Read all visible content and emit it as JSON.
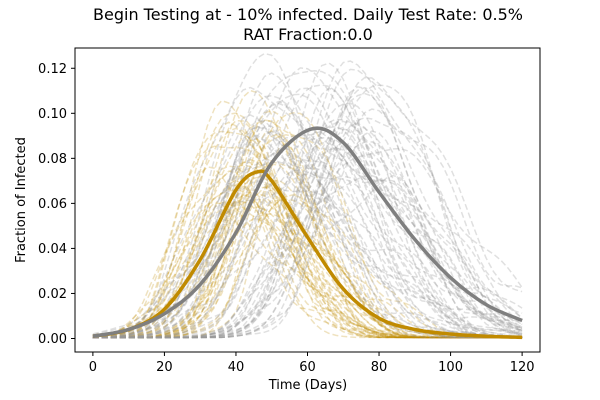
{
  "chart_data": {
    "type": "line",
    "title": [
      "Begin Testing at - 10% infected. Daily Test Rate: 0.5%",
      "RAT Fraction:0.0"
    ],
    "xlabel": "Time (Days)",
    "ylabel": "Fraction of Infected",
    "xlim": [
      -5,
      125
    ],
    "ylim": [
      -0.006,
      0.129
    ],
    "xticks": [
      0,
      20,
      40,
      60,
      80,
      100,
      120
    ],
    "yticks": [
      0.0,
      0.02,
      0.04,
      0.06,
      0.08,
      0.1,
      0.12
    ],
    "ytick_labels": [
      "0.00",
      "0.02",
      "0.04",
      "0.06",
      "0.08",
      "0.10",
      "0.12"
    ],
    "grid": false,
    "series": [
      {
        "role": "mean",
        "color": "#c08a00",
        "x": [
          0,
          10,
          20,
          30,
          40,
          46,
          50,
          60,
          70,
          80,
          90,
          100,
          110,
          120
        ],
        "y": [
          0.001,
          0.004,
          0.013,
          0.035,
          0.066,
          0.074,
          0.07,
          0.045,
          0.022,
          0.009,
          0.004,
          0.002,
          0.001,
          0.0005
        ]
      },
      {
        "role": "mean",
        "color": "#7f7f7f",
        "x": [
          0,
          10,
          20,
          30,
          40,
          50,
          61,
          70,
          80,
          90,
          100,
          110,
          120
        ],
        "y": [
          0.001,
          0.004,
          0.011,
          0.024,
          0.047,
          0.078,
          0.093,
          0.087,
          0.065,
          0.044,
          0.027,
          0.015,
          0.008
        ]
      }
    ],
    "ensembles": [
      {
        "color": "#c08a00",
        "runs": 45,
        "peak_day_range": [
          35,
          55
        ],
        "peak_value_range": [
          0.055,
          0.105
        ],
        "width_range": [
          8,
          13
        ],
        "opacity": 0.25
      },
      {
        "color": "#999999",
        "runs": 55,
        "peak_day_range": [
          45,
          80
        ],
        "peak_value_range": [
          0.07,
          0.123
        ],
        "width_range": [
          11,
          17
        ],
        "opacity": 0.3
      }
    ]
  }
}
